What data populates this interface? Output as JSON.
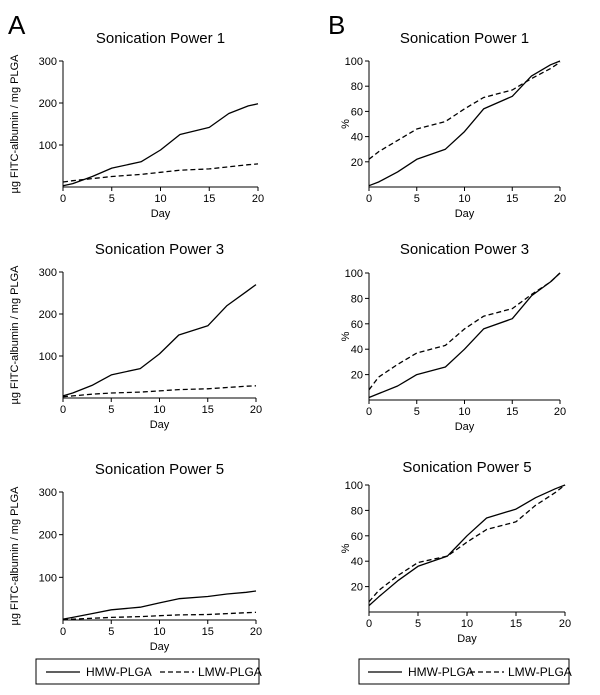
{
  "panels": [
    {
      "letter": "A"
    },
    {
      "letter": "B"
    }
  ],
  "legends": [
    {
      "items": [
        "HMW-PLGA",
        "LMW-PLGA"
      ]
    },
    {
      "items": [
        "HMW-PLGA",
        "LMW-PLGA"
      ]
    }
  ],
  "chart_data": [
    {
      "type": "line",
      "title": "Sonication Power 1",
      "xlabel": "Day",
      "ylabel": "µg FITC-albumin / mg PLGA",
      "xlim": [
        0,
        20
      ],
      "ylim": [
        0,
        300
      ],
      "xticks": [
        0,
        5,
        10,
        15,
        20
      ],
      "yticks": [
        100,
        200,
        300
      ],
      "series": [
        {
          "name": "HMW-PLGA",
          "dash": "solid",
          "x": [
            0,
            1,
            3,
            5,
            8,
            10,
            12,
            15,
            17,
            19,
            20
          ],
          "y": [
            3,
            8,
            25,
            45,
            60,
            88,
            125,
            142,
            175,
            193,
            198
          ]
        },
        {
          "name": "LMW-PLGA",
          "dash": "dashed",
          "x": [
            0,
            1,
            3,
            5,
            8,
            10,
            12,
            15,
            17,
            19,
            20
          ],
          "y": [
            12,
            15,
            20,
            25,
            30,
            35,
            40,
            43,
            48,
            53,
            55
          ]
        }
      ]
    },
    {
      "type": "line",
      "title": "Sonication Power 1",
      "xlabel": "Day",
      "ylabel": "%",
      "xlim": [
        0,
        20
      ],
      "ylim": [
        0,
        100
      ],
      "xticks": [
        0,
        5,
        10,
        15,
        20
      ],
      "yticks": [
        20,
        40,
        60,
        80,
        100
      ],
      "series": [
        {
          "name": "HMW-PLGA",
          "dash": "solid",
          "x": [
            0,
            1,
            3,
            5,
            8,
            10,
            12,
            15,
            17,
            19,
            20
          ],
          "y": [
            1,
            4,
            12,
            22,
            30,
            44,
            62,
            72,
            88,
            97,
            100
          ]
        },
        {
          "name": "LMW-PLGA",
          "dash": "dashed",
          "x": [
            0,
            1,
            3,
            5,
            8,
            10,
            12,
            15,
            17,
            19,
            20
          ],
          "y": [
            22,
            28,
            37,
            46,
            52,
            62,
            71,
            77,
            86,
            94,
            99
          ]
        }
      ]
    },
    {
      "type": "line",
      "title": "Sonication Power 3",
      "xlabel": "Day",
      "ylabel": "µg FITC-albumin / mg PLGA",
      "xlim": [
        0,
        20
      ],
      "ylim": [
        0,
        300
      ],
      "xticks": [
        0,
        5,
        10,
        15,
        20
      ],
      "yticks": [
        100,
        200,
        300
      ],
      "series": [
        {
          "name": "HMW-PLGA",
          "dash": "solid",
          "x": [
            0,
            1,
            3,
            5,
            8,
            10,
            12,
            15,
            17,
            19,
            20
          ],
          "y": [
            5,
            12,
            30,
            55,
            70,
            105,
            150,
            172,
            220,
            253,
            270
          ]
        },
        {
          "name": "LMW-PLGA",
          "dash": "dashed",
          "x": [
            0,
            1,
            3,
            5,
            8,
            10,
            12,
            15,
            17,
            19,
            20
          ],
          "y": [
            3,
            5,
            9,
            12,
            14,
            17,
            20,
            22,
            25,
            28,
            29
          ]
        }
      ]
    },
    {
      "type": "line",
      "title": "Sonication Power 3",
      "xlabel": "Day",
      "ylabel": "%",
      "xlim": [
        0,
        20
      ],
      "ylim": [
        0,
        100
      ],
      "xticks": [
        0,
        5,
        10,
        15,
        20
      ],
      "yticks": [
        20,
        40,
        60,
        80,
        100
      ],
      "series": [
        {
          "name": "HMW-PLGA",
          "dash": "solid",
          "x": [
            0,
            1,
            3,
            5,
            8,
            10,
            12,
            15,
            17,
            19,
            20
          ],
          "y": [
            2,
            5,
            11,
            20,
            26,
            40,
            56,
            64,
            82,
            93,
            100
          ]
        },
        {
          "name": "LMW-PLGA",
          "dash": "dashed",
          "x": [
            0,
            1,
            3,
            5,
            8,
            10,
            12,
            15,
            17,
            19,
            20
          ],
          "y": [
            8,
            18,
            28,
            37,
            43,
            56,
            66,
            72,
            83,
            93,
            100
          ]
        }
      ]
    },
    {
      "type": "line",
      "title": "Sonication Power 5",
      "xlabel": "Day",
      "ylabel": "µg FITC-albumin / mg PLGA",
      "xlim": [
        0,
        20
      ],
      "ylim": [
        0,
        300
      ],
      "xticks": [
        0,
        5,
        10,
        15,
        20
      ],
      "yticks": [
        100,
        200,
        300
      ],
      "series": [
        {
          "name": "HMW-PLGA",
          "dash": "solid",
          "x": [
            0,
            1,
            3,
            5,
            8,
            10,
            12,
            15,
            17,
            19,
            20
          ],
          "y": [
            2,
            6,
            15,
            24,
            30,
            40,
            50,
            55,
            61,
            65,
            68
          ]
        },
        {
          "name": "LMW-PLGA",
          "dash": "dashed",
          "x": [
            0,
            1,
            3,
            5,
            8,
            10,
            12,
            15,
            17,
            19,
            20
          ],
          "y": [
            1,
            2,
            4,
            6,
            8,
            10,
            12,
            13,
            15,
            17,
            18
          ]
        }
      ]
    },
    {
      "type": "line",
      "title": "Sonication Power 5",
      "xlabel": "Day",
      "ylabel": "%",
      "xlim": [
        0,
        20
      ],
      "ylim": [
        0,
        100
      ],
      "xticks": [
        0,
        5,
        10,
        15,
        20
      ],
      "yticks": [
        20,
        40,
        60,
        80,
        100
      ],
      "series": [
        {
          "name": "HMW-PLGA",
          "dash": "solid",
          "x": [
            0,
            1,
            3,
            5,
            8,
            9,
            10,
            12,
            15,
            17,
            19,
            20
          ],
          "y": [
            5,
            12,
            25,
            36,
            44,
            52,
            60,
            74,
            81,
            90,
            97,
            100
          ]
        },
        {
          "name": "LMW-PLGA",
          "dash": "dashed",
          "x": [
            0,
            1,
            3,
            5,
            8,
            10,
            12,
            15,
            17,
            19,
            20
          ],
          "y": [
            8,
            17,
            29,
            39,
            44,
            55,
            65,
            71,
            84,
            94,
            100
          ]
        }
      ]
    }
  ]
}
